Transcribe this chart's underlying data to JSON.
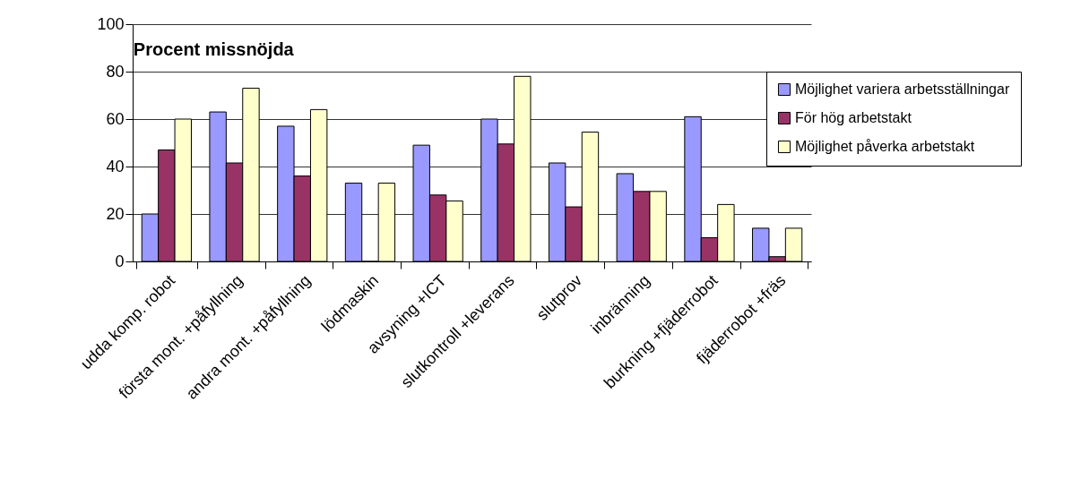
{
  "chart_data": {
    "type": "bar",
    "title": "Procent missnöjda",
    "categories": [
      "udda komp. robot",
      "första mont. +påfyllning",
      "andra mont. +påfyllning",
      "lödmaskin",
      "avsyning +ICT",
      "slutkontroll +leverans",
      "slutprov",
      "inbränning",
      "burkning +fjäderrobot",
      "fjäderrobot +fräs"
    ],
    "series": [
      {
        "name": "Möjlighet variera arbetsställningar",
        "color": "#9999ff",
        "values": [
          20,
          63,
          57,
          33,
          49,
          60,
          41.5,
          37,
          61,
          14
        ]
      },
      {
        "name": "För hög arbetstakt",
        "color": "#993366",
        "values": [
          47,
          41.5,
          36,
          0,
          28,
          49.5,
          23,
          29.5,
          10,
          2
        ]
      },
      {
        "name": "Möjlighet påverka arbetstakt",
        "color": "#ffffcc",
        "values": [
          60,
          73,
          64,
          33,
          25.5,
          78,
          54.5,
          29.5,
          24,
          14
        ]
      }
    ],
    "ylim": [
      0,
      100
    ],
    "yticks": [
      0,
      20,
      40,
      60,
      80,
      100
    ],
    "grid": "y",
    "legend": "right"
  }
}
